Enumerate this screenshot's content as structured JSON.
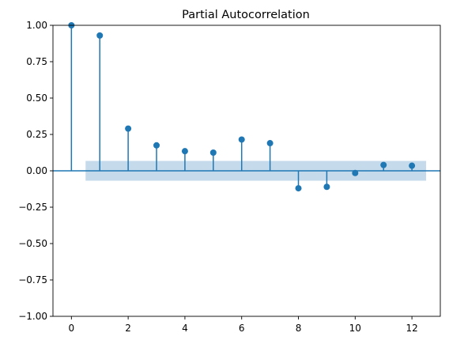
{
  "chart_data": {
    "type": "stem",
    "title": "Partial Autocorrelation",
    "xlabel": "",
    "ylabel": "",
    "xlim": [
      -0.65,
      13.0
    ],
    "ylim": [
      -1.0,
      1.0
    ],
    "x": [
      0,
      1,
      2,
      3,
      4,
      5,
      6,
      7,
      8,
      9,
      10,
      11,
      12
    ],
    "values": [
      1.0,
      0.93,
      0.29,
      0.175,
      0.135,
      0.125,
      0.215,
      0.19,
      -0.12,
      -0.11,
      -0.015,
      0.04,
      0.035
    ],
    "confidence_band": {
      "x_range": [
        0.5,
        12.5
      ],
      "lower": -0.068,
      "upper": 0.068,
      "color": "#c5daeb"
    },
    "xticks": [
      0,
      2,
      4,
      6,
      8,
      10,
      12
    ],
    "yticks": [
      -1.0,
      -0.75,
      -0.5,
      -0.25,
      0.0,
      0.25,
      0.5,
      0.75,
      1.0
    ],
    "xtick_labels": [
      "0",
      "2",
      "4",
      "6",
      "8",
      "10",
      "12"
    ],
    "ytick_labels": [
      "−1.00",
      "−0.75",
      "−0.50",
      "−0.25",
      "0.00",
      "0.25",
      "0.50",
      "0.75",
      "1.00"
    ],
    "series_color": "#1f77b4",
    "grid": false,
    "legend": "none"
  }
}
